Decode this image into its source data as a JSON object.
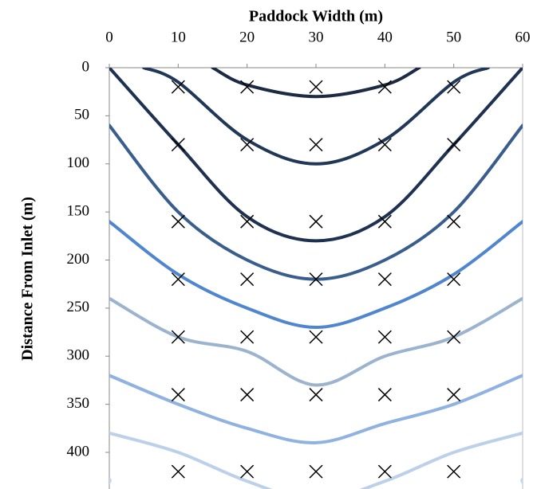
{
  "chart_data": {
    "type": "line",
    "x_label": "Paddock Width (m)",
    "y_label": "Distance From Inlet (m)",
    "xlim": [
      0,
      60
    ],
    "xticks": [
      0,
      10,
      20,
      30,
      40,
      50,
      60
    ],
    "ylim": [
      0,
      438
    ],
    "yticks": [
      0,
      50,
      100,
      150,
      200,
      250,
      300,
      350,
      400
    ],
    "y_inverted": true,
    "x_axis_position": "top",
    "grid": false,
    "series": [
      {
        "color": "#1c2a43",
        "x": [
          15,
          20,
          30,
          40,
          45
        ],
        "values": [
          0,
          18,
          30,
          18,
          0
        ]
      },
      {
        "color": "#213757",
        "x": [
          5,
          10,
          20,
          30,
          40,
          50,
          55
        ],
        "values": [
          0,
          15,
          75,
          100,
          75,
          15,
          0
        ]
      },
      {
        "color": "#1e3150",
        "x": [
          0,
          10,
          20,
          30,
          40,
          50,
          60
        ],
        "values": [
          0,
          80,
          155,
          180,
          155,
          80,
          0
        ]
      },
      {
        "color": "#395e8d",
        "x": [
          0,
          10,
          20,
          30,
          40,
          50,
          60
        ],
        "values": [
          60,
          150,
          200,
          220,
          200,
          150,
          60
        ]
      },
      {
        "color": "#4f86cf",
        "x": [
          0,
          10,
          20,
          30,
          40,
          50,
          60
        ],
        "values": [
          160,
          215,
          250,
          270,
          250,
          215,
          160
        ]
      },
      {
        "color": "#9cb3d0",
        "x": [
          0,
          10,
          20,
          30,
          40,
          50,
          60
        ],
        "values": [
          240,
          280,
          295,
          330,
          300,
          280,
          240
        ]
      },
      {
        "color": "#8fb2e0",
        "x": [
          0,
          10,
          20,
          30,
          40,
          50,
          60
        ],
        "values": [
          320,
          350,
          375,
          390,
          370,
          350,
          320
        ]
      },
      {
        "color": "#bcd0ea",
        "x": [
          0,
          10,
          20,
          30,
          40,
          50,
          60
        ],
        "values": [
          380,
          400,
          430,
          450,
          430,
          400,
          380
        ]
      },
      {
        "color": "#c6d8ee",
        "x": [
          0,
          5,
          55,
          60
        ],
        "values": [
          428,
          450,
          450,
          428
        ]
      },
      {
        "type": "scatter",
        "marker": "x",
        "color": "#000000",
        "x": [
          10,
          20,
          30,
          40,
          50,
          10,
          20,
          30,
          40,
          50,
          10,
          20,
          30,
          40,
          50,
          10,
          20,
          30,
          40,
          50,
          10,
          20,
          30,
          40,
          50,
          10,
          20,
          30,
          40,
          50,
          10,
          20,
          30,
          40,
          50
        ],
        "values": [
          20,
          20,
          20,
          20,
          20,
          80,
          80,
          80,
          80,
          80,
          160,
          160,
          160,
          160,
          160,
          220,
          220,
          220,
          220,
          220,
          280,
          280,
          280,
          280,
          280,
          340,
          340,
          340,
          340,
          340,
          420,
          420,
          420,
          420,
          420
        ]
      }
    ]
  }
}
